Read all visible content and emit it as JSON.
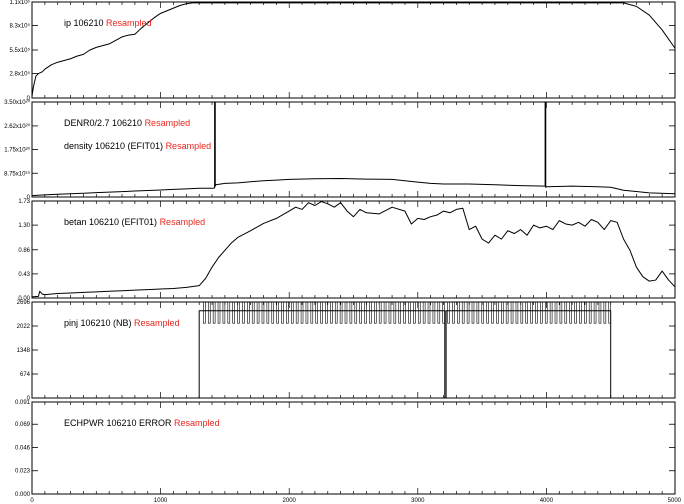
{
  "chart_data": {
    "type": "line",
    "x_ticks": [
      0,
      1000,
      2000,
      3000,
      4000,
      5000
    ],
    "x_tick_labels": [
      "0",
      "1000",
      "2000",
      "3000",
      "4000",
      "5000"
    ],
    "xlim": [
      0,
      5000
    ],
    "resampled_color": "#e8261e",
    "panels": [
      {
        "ylim": [
          0,
          1.1
        ],
        "y_ticks": [
          0,
          0.28,
          0.55,
          0.83,
          1.1
        ],
        "y_tick_labels": [
          "0",
          "2.8x10⁵",
          "5.5x10⁵",
          "8.3x10⁵",
          "1.1x10⁶"
        ],
        "labels": [
          {
            "text": "ip  106210",
            "suffix": "Resampled"
          }
        ],
        "series": [
          {
            "x": [
              0,
              10,
              30,
              50,
              80,
              100,
              150,
              200,
              250,
              300,
              350,
              400,
              450,
              500,
              550,
              600,
              650,
              700,
              750,
              800,
              850,
              900,
              950,
              1000,
              1050,
              1100,
              1150,
              1200,
              1250,
              1300,
              1400,
              1600,
              1800,
              2000,
              2200,
              2400,
              2600,
              2800,
              3000,
              3200,
              3400,
              3600,
              3800,
              4000,
              4200,
              4400,
              4500,
              4600,
              4700,
              4800,
              4900,
              5000
            ],
            "y": [
              0.02,
              0.12,
              0.25,
              0.28,
              0.3,
              0.33,
              0.38,
              0.41,
              0.43,
              0.45,
              0.48,
              0.5,
              0.55,
              0.58,
              0.6,
              0.62,
              0.66,
              0.7,
              0.72,
              0.73,
              0.8,
              0.86,
              0.92,
              0.97,
              1.0,
              1.03,
              1.06,
              1.08,
              1.09,
              1.09,
              1.09,
              1.09,
              1.09,
              1.09,
              1.09,
              1.09,
              1.09,
              1.09,
              1.09,
              1.09,
              1.09,
              1.09,
              1.09,
              1.09,
              1.09,
              1.09,
              1.09,
              1.09,
              1.05,
              0.95,
              0.78,
              0.57
            ]
          }
        ]
      },
      {
        "ylim": [
          0,
          3.5
        ],
        "y_ticks": [
          0,
          0.875,
          1.75,
          2.62,
          3.5
        ],
        "y_tick_labels": [
          "0",
          "8.75x10¹⁹",
          "1.75x10²⁰",
          "2.62x10²⁰",
          "3.50x10²⁰"
        ],
        "labels": [
          {
            "text": "DENR0/2.7  106210",
            "suffix": "Resampled"
          },
          {
            "text": "density  106210 (EFIT01)",
            "suffix": "Resampled"
          }
        ],
        "series": [
          {
            "x": [
              0,
              100,
              200,
              300,
              400,
              500,
              600,
              700,
              800,
              900,
              1000,
              1100,
              1200,
              1300,
              1400,
              1420,
              1420,
              1425,
              1425,
              1430,
              1500,
              1600,
              1700,
              1800,
              1900,
              2000,
              2200,
              2400,
              2600,
              2800,
              3000,
              3100,
              3200,
              3400,
              3600,
              3800,
              3990,
              3990,
              3995,
              3995,
              4000,
              4200,
              4400,
              4500,
              4600,
              4800,
              5000
            ],
            "y": [
              0.05,
              0.08,
              0.1,
              0.12,
              0.14,
              0.16,
              0.18,
              0.2,
              0.22,
              0.24,
              0.26,
              0.28,
              0.3,
              0.32,
              0.32,
              0.33,
              3.5,
              3.5,
              0.4,
              0.45,
              0.5,
              0.52,
              0.56,
              0.6,
              0.62,
              0.65,
              0.67,
              0.68,
              0.66,
              0.65,
              0.55,
              0.5,
              0.48,
              0.48,
              0.45,
              0.42,
              0.4,
              3.5,
              3.5,
              0.35,
              0.38,
              0.4,
              0.38,
              0.36,
              0.25,
              0.15,
              0.12
            ]
          }
        ]
      },
      {
        "ylim": [
          0,
          1.73
        ],
        "y_ticks": [
          0,
          0.43,
          0.86,
          1.3,
          1.73
        ],
        "y_tick_labels": [
          "0.00",
          "0.43",
          "0.86",
          "1.30",
          "1.73"
        ],
        "labels": [
          {
            "text": "betan  106210 (EFIT01)",
            "suffix": "Resampled"
          }
        ],
        "series": [
          {
            "x": [
              0,
              50,
              60,
              80,
              100,
              200,
              300,
              400,
              500,
              600,
              700,
              800,
              900,
              1000,
              1100,
              1200,
              1300,
              1350,
              1400,
              1450,
              1500,
              1550,
              1600,
              1700,
              1800,
              1900,
              2000,
              2050,
              2100,
              2150,
              2200,
              2250,
              2300,
              2350,
              2400,
              2450,
              2500,
              2550,
              2600,
              2700,
              2800,
              2900,
              2950,
              3000,
              3050,
              3100,
              3150,
              3200,
              3250,
              3300,
              3350,
              3400,
              3450,
              3500,
              3550,
              3600,
              3650,
              3700,
              3750,
              3800,
              3850,
              3900,
              3950,
              4000,
              4050,
              4100,
              4150,
              4200,
              4250,
              4300,
              4350,
              4400,
              4450,
              4500,
              4550,
              4600,
              4650,
              4700,
              4750,
              4800,
              4850,
              4900,
              4950,
              5000
            ],
            "y": [
              0.02,
              0.03,
              0.12,
              0.07,
              0.06,
              0.08,
              0.09,
              0.1,
              0.11,
              0.12,
              0.13,
              0.14,
              0.15,
              0.16,
              0.17,
              0.19,
              0.22,
              0.35,
              0.55,
              0.72,
              0.85,
              0.98,
              1.08,
              1.2,
              1.33,
              1.42,
              1.55,
              1.62,
              1.58,
              1.7,
              1.65,
              1.72,
              1.68,
              1.62,
              1.7,
              1.55,
              1.45,
              1.58,
              1.52,
              1.5,
              1.62,
              1.55,
              1.32,
              1.42,
              1.4,
              1.45,
              1.48,
              1.55,
              1.52,
              1.58,
              1.6,
              1.22,
              1.28,
              1.05,
              0.98,
              1.12,
              1.05,
              1.2,
              1.15,
              1.22,
              1.12,
              1.3,
              1.25,
              1.28,
              1.22,
              1.38,
              1.32,
              1.3,
              1.35,
              1.28,
              1.4,
              1.35,
              1.22,
              1.38,
              1.35,
              1.05,
              0.85,
              0.55,
              0.38,
              0.3,
              0.32,
              0.48,
              0.32,
              0.2
            ]
          }
        ]
      },
      {
        "ylim": [
          0,
          2.696
        ],
        "y_ticks": [
          0,
          0.674,
          1.348,
          2.022,
          2.696
        ],
        "y_tick_labels": [
          "0",
          "674",
          "1348",
          "2022",
          "2696"
        ],
        "labels": [
          {
            "text": "pinj  106210 (NB)",
            "suffix": "Resampled"
          }
        ],
        "series": [
          {
            "x": [
              0,
              1300,
              1300,
              1310,
              1310,
              3210,
              3210,
              3220,
              3220,
              4500,
              4500,
              5000
            ],
            "y": [
              0,
              0,
              2.45,
              2.45,
              2.45,
              2.45,
              0,
              0,
              2.45,
              2.45,
              0,
              0
            ]
          }
        ],
        "pulse_band": {
          "x_start": 1310,
          "x_end": 4500,
          "y_low": 2.1,
          "y_high": 2.7,
          "pulse_count": 84
        }
      },
      {
        "ylim": [
          0,
          0.091
        ],
        "y_ticks": [
          0,
          0.023,
          0.046,
          0.069,
          0.091
        ],
        "y_tick_labels": [
          "0.000",
          "0.023",
          "0.046",
          "0.069",
          "0.091"
        ],
        "labels": [
          {
            "text": "ECHPWR  106210 ERROR",
            "suffix": "Resampled"
          }
        ],
        "series": []
      }
    ]
  }
}
